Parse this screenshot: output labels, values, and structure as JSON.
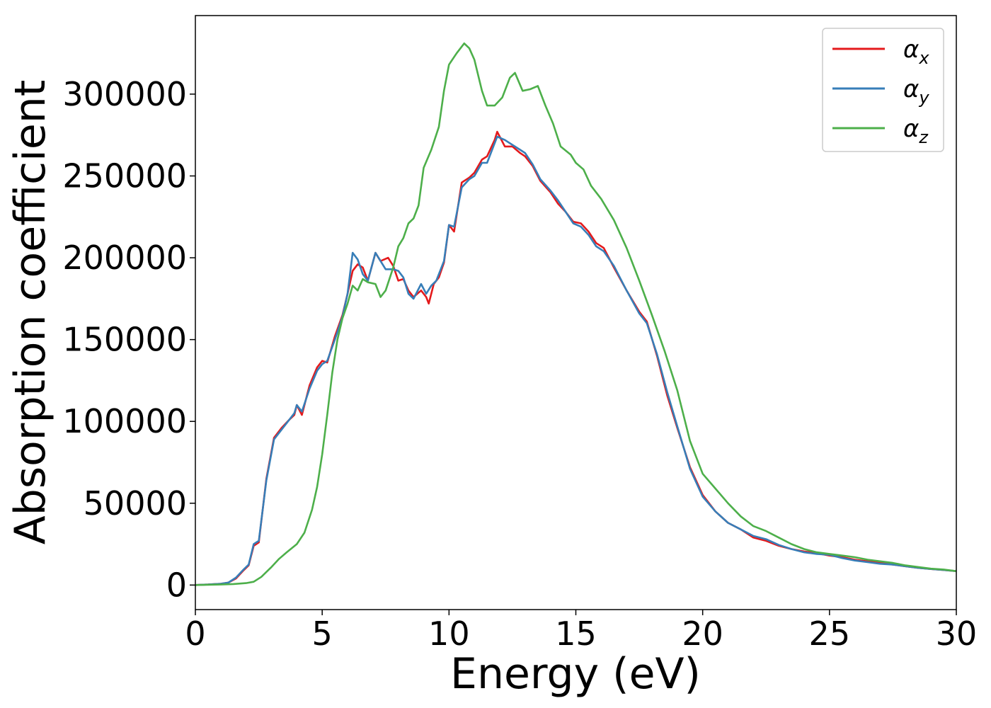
{
  "chart_data": {
    "type": "line",
    "title": "",
    "xlabel": "Energy (eV)",
    "ylabel": "Absorption coefficient",
    "xlim": [
      0,
      30
    ],
    "ylim": [
      -15000,
      348000
    ],
    "xticks": [
      "0",
      "5",
      "10",
      "15",
      "20",
      "25",
      "30"
    ],
    "yticks": [
      "0",
      "50000",
      "100000",
      "150000",
      "200000",
      "250000",
      "300000"
    ],
    "grid": false,
    "legend_position": "top-right",
    "series": [
      {
        "name": "αx",
        "symbol": "α",
        "subscript": "x",
        "color": "#e41a1c",
        "points": [
          [
            0,
            0
          ],
          [
            0.5,
            300
          ],
          [
            1.0,
            800
          ],
          [
            1.3,
            1500
          ],
          [
            1.6,
            4000
          ],
          [
            1.9,
            9000
          ],
          [
            2.1,
            12000
          ],
          [
            2.3,
            24000
          ],
          [
            2.5,
            26000
          ],
          [
            2.8,
            65000
          ],
          [
            3.1,
            90000
          ],
          [
            3.4,
            96000
          ],
          [
            3.7,
            101000
          ],
          [
            3.9,
            104000
          ],
          [
            4.0,
            110000
          ],
          [
            4.2,
            104000
          ],
          [
            4.5,
            122000
          ],
          [
            4.8,
            133000
          ],
          [
            5.0,
            137000
          ],
          [
            5.2,
            136000
          ],
          [
            5.5,
            152000
          ],
          [
            5.8,
            165000
          ],
          [
            6.0,
            178000
          ],
          [
            6.2,
            192000
          ],
          [
            6.4,
            196000
          ],
          [
            6.6,
            194000
          ],
          [
            6.8,
            186000
          ],
          [
            7.1,
            203000
          ],
          [
            7.3,
            198000
          ],
          [
            7.6,
            200000
          ],
          [
            7.8,
            195000
          ],
          [
            8.0,
            186000
          ],
          [
            8.2,
            187000
          ],
          [
            8.4,
            180000
          ],
          [
            8.6,
            176000
          ],
          [
            8.9,
            180000
          ],
          [
            9.1,
            176000
          ],
          [
            9.2,
            172000
          ],
          [
            9.4,
            184000
          ],
          [
            9.6,
            188000
          ],
          [
            9.8,
            197000
          ],
          [
            10.0,
            220000
          ],
          [
            10.2,
            216000
          ],
          [
            10.5,
            246000
          ],
          [
            10.8,
            249000
          ],
          [
            11.0,
            252000
          ],
          [
            11.3,
            260000
          ],
          [
            11.5,
            262000
          ],
          [
            11.8,
            272000
          ],
          [
            11.9,
            277000
          ],
          [
            12.2,
            268000
          ],
          [
            12.5,
            268000
          ],
          [
            12.8,
            264000
          ],
          [
            13.0,
            262000
          ],
          [
            13.3,
            256000
          ],
          [
            13.6,
            247000
          ],
          [
            14.0,
            240000
          ],
          [
            14.3,
            233000
          ],
          [
            14.6,
            228000
          ],
          [
            14.9,
            222000
          ],
          [
            15.2,
            221000
          ],
          [
            15.5,
            216000
          ],
          [
            15.8,
            209000
          ],
          [
            16.1,
            206000
          ],
          [
            16.5,
            194000
          ],
          [
            17.0,
            180000
          ],
          [
            17.5,
            167000
          ],
          [
            17.8,
            161000
          ],
          [
            18.2,
            140000
          ],
          [
            18.6,
            116000
          ],
          [
            19.0,
            96000
          ],
          [
            19.5,
            72000
          ],
          [
            20.0,
            55000
          ],
          [
            20.5,
            45000
          ],
          [
            21.0,
            38000
          ],
          [
            21.5,
            34000
          ],
          [
            22.0,
            29000
          ],
          [
            22.5,
            27000
          ],
          [
            23.0,
            24000
          ],
          [
            23.5,
            22000
          ],
          [
            24.0,
            20500
          ],
          [
            24.5,
            19500
          ],
          [
            25.0,
            18000
          ],
          [
            25.5,
            17000
          ],
          [
            26.0,
            15500
          ],
          [
            26.5,
            14500
          ],
          [
            27.0,
            13500
          ],
          [
            27.5,
            12500
          ],
          [
            28.0,
            11500
          ],
          [
            28.5,
            10500
          ],
          [
            29.0,
            9800
          ],
          [
            29.5,
            9200
          ],
          [
            30.0,
            8500
          ]
        ]
      },
      {
        "name": "αy",
        "symbol": "α",
        "subscript": "y",
        "color": "#377eb8",
        "points": [
          [
            0,
            0
          ],
          [
            0.5,
            300
          ],
          [
            1.0,
            800
          ],
          [
            1.3,
            1500
          ],
          [
            1.6,
            4500
          ],
          [
            1.9,
            9500
          ],
          [
            2.1,
            12500
          ],
          [
            2.3,
            25000
          ],
          [
            2.5,
            27000
          ],
          [
            2.8,
            64000
          ],
          [
            3.1,
            89000
          ],
          [
            3.4,
            95000
          ],
          [
            3.7,
            101000
          ],
          [
            3.9,
            105000
          ],
          [
            4.0,
            110000
          ],
          [
            4.2,
            106000
          ],
          [
            4.5,
            120000
          ],
          [
            4.8,
            131000
          ],
          [
            5.0,
            135000
          ],
          [
            5.2,
            137000
          ],
          [
            5.5,
            150000
          ],
          [
            5.8,
            164000
          ],
          [
            6.0,
            178000
          ],
          [
            6.2,
            203000
          ],
          [
            6.4,
            199000
          ],
          [
            6.6,
            190000
          ],
          [
            6.8,
            186000
          ],
          [
            7.1,
            203000
          ],
          [
            7.3,
            198000
          ],
          [
            7.5,
            193000
          ],
          [
            7.8,
            193000
          ],
          [
            8.0,
            192000
          ],
          [
            8.2,
            188000
          ],
          [
            8.4,
            178000
          ],
          [
            8.6,
            175000
          ],
          [
            8.9,
            184000
          ],
          [
            9.1,
            178000
          ],
          [
            9.3,
            183000
          ],
          [
            9.5,
            186000
          ],
          [
            9.8,
            198000
          ],
          [
            10.0,
            220000
          ],
          [
            10.2,
            219000
          ],
          [
            10.5,
            243000
          ],
          [
            10.8,
            248000
          ],
          [
            11.0,
            250000
          ],
          [
            11.3,
            258000
          ],
          [
            11.5,
            258000
          ],
          [
            11.8,
            270000
          ],
          [
            11.9,
            274000
          ],
          [
            12.2,
            272000
          ],
          [
            12.5,
            269000
          ],
          [
            12.8,
            266000
          ],
          [
            13.0,
            264000
          ],
          [
            13.3,
            257000
          ],
          [
            13.6,
            248000
          ],
          [
            14.0,
            241000
          ],
          [
            14.3,
            235000
          ],
          [
            14.6,
            228000
          ],
          [
            14.9,
            221000
          ],
          [
            15.2,
            219000
          ],
          [
            15.5,
            214000
          ],
          [
            15.8,
            207000
          ],
          [
            16.1,
            204000
          ],
          [
            16.5,
            195000
          ],
          [
            17.0,
            180000
          ],
          [
            17.5,
            166000
          ],
          [
            17.8,
            160000
          ],
          [
            18.2,
            141000
          ],
          [
            18.6,
            118000
          ],
          [
            19.0,
            97000
          ],
          [
            19.5,
            71000
          ],
          [
            20.0,
            54000
          ],
          [
            20.5,
            45000
          ],
          [
            21.0,
            38000
          ],
          [
            21.5,
            34000
          ],
          [
            22.0,
            30000
          ],
          [
            22.5,
            28000
          ],
          [
            23.0,
            24500
          ],
          [
            23.5,
            22000
          ],
          [
            24.0,
            20000
          ],
          [
            24.5,
            19000
          ],
          [
            25.0,
            18500
          ],
          [
            25.5,
            16500
          ],
          [
            26.0,
            15000
          ],
          [
            26.5,
            14000
          ],
          [
            27.0,
            13000
          ],
          [
            27.5,
            12500
          ],
          [
            28.0,
            11500
          ],
          [
            28.5,
            10500
          ],
          [
            29.0,
            9800
          ],
          [
            29.5,
            9200
          ],
          [
            30.0,
            8500
          ]
        ]
      },
      {
        "name": "αz",
        "symbol": "α",
        "subscript": "z",
        "color": "#4daf4a",
        "points": [
          [
            0,
            0
          ],
          [
            1.0,
            300
          ],
          [
            1.5,
            600
          ],
          [
            2.0,
            1200
          ],
          [
            2.3,
            2000
          ],
          [
            2.6,
            5000
          ],
          [
            3.0,
            11000
          ],
          [
            3.3,
            16000
          ],
          [
            3.6,
            20000
          ],
          [
            4.0,
            25000
          ],
          [
            4.3,
            32000
          ],
          [
            4.6,
            46000
          ],
          [
            4.8,
            60000
          ],
          [
            5.0,
            80000
          ],
          [
            5.2,
            104000
          ],
          [
            5.4,
            130000
          ],
          [
            5.6,
            150000
          ],
          [
            5.8,
            163000
          ],
          [
            6.0,
            172000
          ],
          [
            6.2,
            183000
          ],
          [
            6.4,
            180000
          ],
          [
            6.6,
            187000
          ],
          [
            6.8,
            185000
          ],
          [
            7.1,
            184000
          ],
          [
            7.3,
            176000
          ],
          [
            7.5,
            180000
          ],
          [
            7.8,
            194000
          ],
          [
            8.0,
            207000
          ],
          [
            8.2,
            212000
          ],
          [
            8.4,
            221000
          ],
          [
            8.6,
            224000
          ],
          [
            8.8,
            232000
          ],
          [
            9.0,
            255000
          ],
          [
            9.3,
            266000
          ],
          [
            9.6,
            280000
          ],
          [
            9.8,
            302000
          ],
          [
            10.0,
            318000
          ],
          [
            10.3,
            325000
          ],
          [
            10.6,
            331000
          ],
          [
            10.8,
            328000
          ],
          [
            11.0,
            321000
          ],
          [
            11.3,
            302000
          ],
          [
            11.5,
            293000
          ],
          [
            11.8,
            293000
          ],
          [
            12.1,
            298000
          ],
          [
            12.4,
            310000
          ],
          [
            12.6,
            313000
          ],
          [
            12.9,
            302000
          ],
          [
            13.2,
            303000
          ],
          [
            13.5,
            305000
          ],
          [
            13.8,
            293000
          ],
          [
            14.1,
            282000
          ],
          [
            14.4,
            268000
          ],
          [
            14.8,
            263000
          ],
          [
            15.0,
            258000
          ],
          [
            15.3,
            254000
          ],
          [
            15.6,
            244000
          ],
          [
            16.0,
            236000
          ],
          [
            16.5,
            223000
          ],
          [
            17.0,
            206000
          ],
          [
            17.5,
            186000
          ],
          [
            18.0,
            165000
          ],
          [
            18.5,
            143000
          ],
          [
            19.0,
            119000
          ],
          [
            19.5,
            88000
          ],
          [
            20.0,
            68000
          ],
          [
            20.5,
            59000
          ],
          [
            21.0,
            50000
          ],
          [
            21.5,
            42000
          ],
          [
            22.0,
            36000
          ],
          [
            22.5,
            33000
          ],
          [
            23.0,
            29000
          ],
          [
            23.5,
            25000
          ],
          [
            24.0,
            22000
          ],
          [
            24.5,
            20000
          ],
          [
            25.0,
            19000
          ],
          [
            25.5,
            18000
          ],
          [
            26.0,
            17000
          ],
          [
            26.5,
            15500
          ],
          [
            27.0,
            14500
          ],
          [
            27.5,
            13500
          ],
          [
            28.0,
            12000
          ],
          [
            28.5,
            11000
          ],
          [
            29.0,
            10000
          ],
          [
            29.5,
            9500
          ],
          [
            30.0,
            8500
          ]
        ]
      }
    ]
  }
}
